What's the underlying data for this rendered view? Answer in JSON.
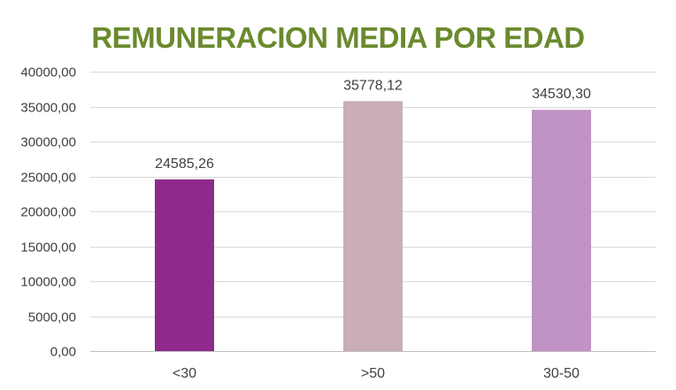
{
  "chart_data": {
    "type": "bar",
    "title": "REMUNERACION MEDIA POR EDAD",
    "categories": [
      "<30",
      ">50",
      "30-50"
    ],
    "values": [
      24585.26,
      35778.12,
      34530.3
    ],
    "value_labels": [
      "24585,26",
      "35778,12",
      "34530,30"
    ],
    "bar_colors": [
      "#8e2a8b",
      "#c9adb8",
      "#c192c4"
    ],
    "ylim": [
      0,
      40000
    ],
    "y_ticks": [
      0,
      5000,
      10000,
      15000,
      20000,
      25000,
      30000,
      35000,
      40000
    ],
    "y_tick_labels": [
      "0,00",
      "5000,00",
      "10000,00",
      "15000,00",
      "20000,00",
      "25000,00",
      "30000,00",
      "35000,00",
      "40000,00"
    ],
    "xlabel": "",
    "ylabel": "",
    "grid": true,
    "legend": "none",
    "title_color": "#6a8a2e",
    "grid_color": "#d9d9d9",
    "text_color": "#404040"
  }
}
